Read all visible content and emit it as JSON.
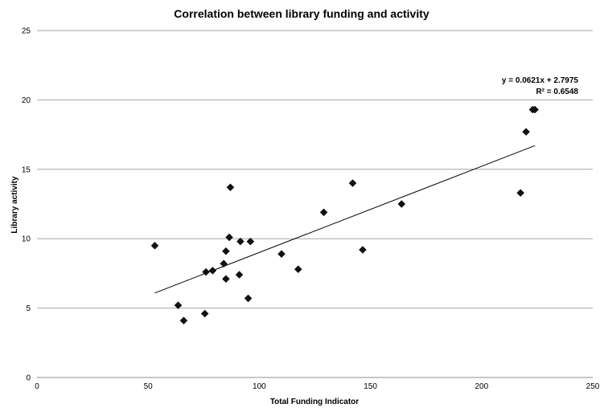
{
  "chart_data": {
    "type": "scatter",
    "title": "Correlation between library funding and activity",
    "xlabel": "Total Funding Indicator",
    "ylabel": "Library activity",
    "xlim": [
      0,
      250
    ],
    "ylim": [
      0,
      25
    ],
    "xticks": [
      0,
      50,
      100,
      150,
      200,
      250
    ],
    "yticks": [
      0,
      5,
      10,
      15,
      20,
      25
    ],
    "grid": "horizontal",
    "marker_color": "#111111",
    "series": [
      {
        "points": [
          {
            "x": 53,
            "y": 9.5
          },
          {
            "x": 63.5,
            "y": 5.2
          },
          {
            "x": 66,
            "y": 4.1
          },
          {
            "x": 75.5,
            "y": 4.6
          },
          {
            "x": 76,
            "y": 7.6
          },
          {
            "x": 79,
            "y": 7.7
          },
          {
            "x": 84,
            "y": 8.2
          },
          {
            "x": 85,
            "y": 9.1
          },
          {
            "x": 85,
            "y": 7.1
          },
          {
            "x": 86.5,
            "y": 10.1
          },
          {
            "x": 87,
            "y": 13.7
          },
          {
            "x": 91,
            "y": 7.4
          },
          {
            "x": 91.5,
            "y": 9.8
          },
          {
            "x": 95,
            "y": 5.7
          },
          {
            "x": 96,
            "y": 9.8
          },
          {
            "x": 110,
            "y": 8.9
          },
          {
            "x": 117.5,
            "y": 7.8
          },
          {
            "x": 129,
            "y": 11.9
          },
          {
            "x": 142,
            "y": 14.0
          },
          {
            "x": 146.5,
            "y": 9.2
          },
          {
            "x": 164,
            "y": 12.5
          },
          {
            "x": 217.5,
            "y": 13.3
          },
          {
            "x": 220,
            "y": 17.7
          },
          {
            "x": 223,
            "y": 19.3
          },
          {
            "x": 224,
            "y": 19.3
          }
        ]
      }
    ],
    "trendline": {
      "type": "linear",
      "slope": 0.0621,
      "intercept": 2.7975,
      "x_range": [
        53,
        224
      ],
      "equation_label": "y = 0.0621x + 2.7975",
      "r2_label": "R² = 0.6548"
    }
  }
}
